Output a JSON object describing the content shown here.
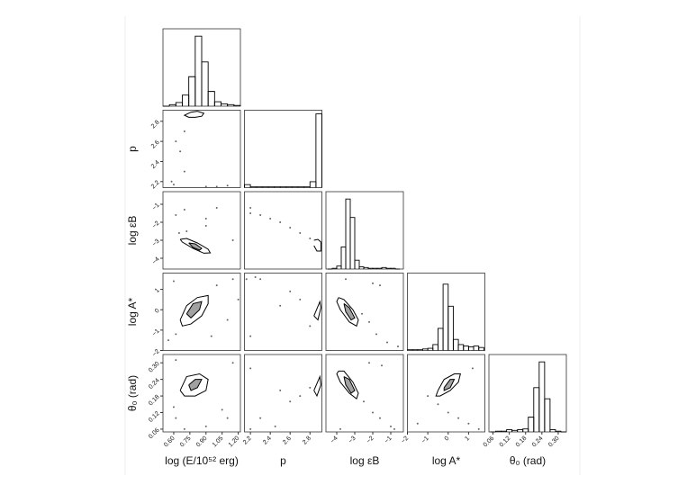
{
  "chart_data": [
    {
      "type": "histogram",
      "color": "#000000",
      "xlim": [
        0.5,
        1.22
      ],
      "ylim": [
        0,
        105
      ],
      "bins": [
        0.5,
        0.56,
        0.62,
        0.68,
        0.74,
        0.8,
        0.86,
        0.92,
        0.98,
        1.04,
        1.1,
        1.16,
        1.22
      ],
      "values": [
        0,
        2,
        5,
        15,
        40,
        95,
        60,
        20,
        6,
        3,
        2,
        1
      ]
    },
    {
      "type": "scatter",
      "color": "#666666",
      "xlim": [
        0.5,
        1.22
      ],
      "ylim": [
        2.14,
        2.91
      ],
      "yticks": [
        2.2,
        2.4,
        2.6,
        2.8
      ],
      "ylabel": "p",
      "x": [
        0.62,
        0.66,
        0.7,
        0.58,
        0.6,
        0.9,
        1.0,
        0.7,
        1.1
      ],
      "y": [
        2.6,
        2.5,
        2.3,
        2.2,
        2.17,
        2.15,
        2.15,
        2.7,
        2.16
      ],
      "contours": [
        {
          "x": [
            0.72,
            0.76,
            0.82,
            0.88,
            0.86,
            0.8,
            0.74,
            0.7,
            0.72
          ],
          "y": [
            2.87,
            2.89,
            2.9,
            2.88,
            2.85,
            2.84,
            2.84,
            2.86,
            2.87
          ]
        }
      ]
    },
    {
      "type": "histogram",
      "color": "#000000",
      "xlim": [
        2.14,
        2.92
      ],
      "ylim": [
        0,
        105
      ],
      "bins": [
        2.14,
        2.2,
        2.26,
        2.32,
        2.38,
        2.44,
        2.5,
        2.56,
        2.62,
        2.68,
        2.74,
        2.8,
        2.86,
        2.92
      ],
      "values": [
        4,
        1,
        1,
        1,
        1,
        1,
        1,
        1,
        1,
        1,
        1,
        8,
        100
      ]
    },
    {
      "type": "scatter",
      "color": "#666666",
      "xlim": [
        0.5,
        1.22
      ],
      "ylim": [
        -4.6,
        -0.3
      ],
      "yticks": [
        {
          "value": -4,
          "label": "−4"
        },
        {
          "value": -3,
          "label": "−3"
        },
        {
          "value": -2,
          "label": "−2"
        },
        {
          "value": -1,
          "label": "−1"
        }
      ],
      "ylabel": "log εB",
      "x": [
        0.62,
        0.7,
        0.9,
        1.0,
        0.65,
        0.72,
        1.15,
        0.9
      ],
      "y": [
        -1.6,
        -1.3,
        -1.8,
        -1.2,
        -2.6,
        -2.5,
        -3.0,
        -2.2
      ],
      "contours": [
        {
          "x": [
            0.66,
            0.72,
            0.82,
            0.92,
            0.94,
            0.88,
            0.78,
            0.68,
            0.66
          ],
          "y": [
            -2.95,
            -2.9,
            -3.15,
            -3.5,
            -3.7,
            -3.72,
            -3.45,
            -3.1,
            -2.95
          ]
        },
        {
          "x": [
            0.74,
            0.8,
            0.86,
            0.84,
            0.78,
            0.74
          ],
          "y": [
            -3.15,
            -3.2,
            -3.45,
            -3.55,
            -3.4,
            -3.15
          ]
        }
      ]
    },
    {
      "type": "scatter",
      "color": "#666666",
      "xlim": [
        2.14,
        2.92
      ],
      "ylim": [
        -4.6,
        -0.3
      ],
      "x": [
        2.2,
        2.3,
        2.5,
        2.6,
        2.7,
        2.8,
        2.2,
        2.4
      ],
      "y": [
        -1.5,
        -1.6,
        -2.0,
        -2.3,
        -2.6,
        -2.9,
        -1.2,
        -1.8
      ],
      "contours": [
        {
          "x": [
            2.84,
            2.88,
            2.91,
            2.91,
            2.87,
            2.84
          ],
          "y": [
            -3.0,
            -2.95,
            -3.1,
            -3.6,
            -3.6,
            -3.3
          ]
        }
      ]
    },
    {
      "type": "histogram",
      "color": "#000000",
      "xlim": [
        -4.6,
        -0.3
      ],
      "ylim": [
        0,
        105
      ],
      "bins": [
        -4.5,
        -4.25,
        -4.0,
        -3.75,
        -3.5,
        -3.25,
        -3.0,
        -2.75,
        -2.5,
        -2.25,
        -2.0,
        -1.75,
        -1.5,
        -1.25,
        -1.0,
        -0.75,
        -0.5
      ],
      "values": [
        0,
        1,
        4,
        30,
        95,
        70,
        12,
        3,
        2,
        1,
        1,
        1,
        2,
        1,
        1,
        0
      ]
    },
    {
      "type": "scatter",
      "color": "#666666",
      "xlim": [
        0.5,
        1.22
      ],
      "ylim": [
        -2,
        1.8
      ],
      "yticks": [
        {
          "value": -2,
          "label": "−2"
        },
        {
          "value": -1,
          "label": "−1"
        },
        0,
        1
      ],
      "ylabel": "log A*",
      "x": [
        0.6,
        0.62,
        1.0,
        1.1,
        1.15,
        0.55,
        0.95,
        1.2
      ],
      "y": [
        1.4,
        -1.2,
        1.2,
        -0.5,
        1.5,
        -1.5,
        -1.3,
        0.5
      ],
      "contours": [
        {
          "x": [
            0.66,
            0.72,
            0.82,
            0.92,
            0.92,
            0.86,
            0.76,
            0.68,
            0.66
          ],
          "y": [
            -0.5,
            0.2,
            0.6,
            0.7,
            0.3,
            -0.3,
            -0.7,
            -0.8,
            -0.5
          ]
        },
        {
          "x": [
            0.72,
            0.78,
            0.86,
            0.84,
            0.76,
            0.72
          ],
          "y": [
            -0.2,
            0.3,
            0.4,
            0.0,
            -0.4,
            -0.2
          ]
        }
      ]
    },
    {
      "type": "scatter",
      "color": "#666666",
      "xlim": [
        2.14,
        2.92
      ],
      "ylim": [
        -2,
        1.8
      ],
      "x": [
        2.25,
        2.3,
        2.6,
        2.2,
        2.5,
        2.7,
        2.8,
        2.16
      ],
      "y": [
        1.6,
        1.5,
        0.9,
        -1.3,
        0.2,
        0.5,
        -0.8,
        1.5
      ],
      "contours": [
        {
          "x": [
            2.84,
            2.9,
            2.91,
            2.88,
            2.84
          ],
          "y": [
            -0.3,
            0.4,
            0.1,
            -0.5,
            -0.3
          ]
        }
      ]
    },
    {
      "type": "scatter",
      "color": "#666666",
      "xlim": [
        -4.6,
        -0.3
      ],
      "ylim": [
        -2,
        1.8
      ],
      "x": [
        -2.6,
        -2.2,
        -1.8,
        -1.2,
        -2.0,
        -1.6,
        -3.5,
        -0.6
      ],
      "y": [
        -0.2,
        -0.6,
        -1.2,
        -1.6,
        1.3,
        1.2,
        1.5,
        -1.8
      ],
      "contours": [
        {
          "x": [
            -3.9,
            -3.6,
            -3.1,
            -2.8,
            -2.9,
            -3.3,
            -3.8,
            -4.0,
            -3.9
          ],
          "y": [
            0.6,
            0.5,
            0.0,
            -0.5,
            -0.8,
            -0.6,
            0.0,
            0.4,
            0.6
          ]
        },
        {
          "x": [
            -3.6,
            -3.3,
            -3.0,
            -3.2,
            -3.5,
            -3.6
          ],
          "y": [
            0.3,
            0.1,
            -0.4,
            -0.5,
            -0.1,
            0.3
          ]
        }
      ]
    },
    {
      "type": "histogram",
      "color": "#000000",
      "xlim": [
        -2,
        1.8
      ],
      "ylim": [
        0,
        105
      ],
      "bins": [
        -2,
        -1.75,
        -1.5,
        -1.25,
        -1,
        -0.75,
        -0.5,
        -0.25,
        0,
        0.25,
        0.5,
        0.75,
        1,
        1.25,
        1.5,
        1.75
      ],
      "values": [
        1,
        1,
        1,
        2,
        3,
        8,
        30,
        90,
        60,
        15,
        8,
        6,
        5,
        6,
        4
      ]
    },
    {
      "type": "scatter",
      "color": "#666666",
      "xlim": [
        0.5,
        1.22
      ],
      "ylim": [
        0.05,
        0.33
      ],
      "xticks": [
        {
          "value": 0.6,
          "label": "0.60"
        },
        0.75,
        {
          "value": 0.9,
          "label": "0.90"
        },
        1.05,
        {
          "value": 1.2,
          "label": "1.20"
        }
      ],
      "xlabel": "log (E/10⁵² erg)",
      "yticks": [
        0.06,
        0.12,
        0.18,
        0.24,
        {
          "value": 0.3,
          "label": "0.30"
        }
      ],
      "ylabel": "θ₀ (rad)",
      "x": [
        0.62,
        0.7,
        0.9,
        1.05,
        1.1,
        0.62,
        0.6,
        1.15
      ],
      "y": [
        0.31,
        0.06,
        0.07,
        0.13,
        0.1,
        0.1,
        0.14,
        0.3
      ],
      "contours": [
        {
          "x": [
            0.66,
            0.72,
            0.84,
            0.92,
            0.9,
            0.8,
            0.7,
            0.66
          ],
          "y": [
            0.2,
            0.25,
            0.26,
            0.24,
            0.2,
            0.18,
            0.18,
            0.2
          ]
        },
        {
          "x": [
            0.74,
            0.8,
            0.86,
            0.82,
            0.76,
            0.74
          ],
          "y": [
            0.22,
            0.24,
            0.24,
            0.21,
            0.2,
            0.22
          ]
        }
      ]
    },
    {
      "type": "scatter",
      "color": "#666666",
      "xlim": [
        2.14,
        2.92
      ],
      "ylim": [
        0.05,
        0.33
      ],
      "xticks": [
        2.2,
        2.4,
        2.6,
        2.8
      ],
      "xlabel": "p",
      "x": [
        2.2,
        2.3,
        2.5,
        2.6,
        2.7,
        2.8,
        2.45,
        2.2
      ],
      "y": [
        0.28,
        0.1,
        0.2,
        0.16,
        0.18,
        0.21,
        0.07,
        0.06
      ],
      "contours": [
        {
          "x": [
            2.84,
            2.9,
            2.91,
            2.87,
            2.84
          ],
          "y": [
            0.2,
            0.25,
            0.22,
            0.18,
            0.2
          ]
        }
      ]
    },
    {
      "type": "scatter",
      "color": "#666666",
      "xlim": [
        -4.6,
        -0.3
      ],
      "ylim": [
        0.05,
        0.33
      ],
      "xticks": [
        {
          "value": -4,
          "label": "−4"
        },
        {
          "value": -3,
          "label": "−3"
        },
        {
          "value": -2,
          "label": "−2"
        },
        {
          "value": -1,
          "label": "−1"
        }
      ],
      "xlabel": "log εB",
      "x": [
        -2.5,
        -2.0,
        -1.6,
        -1.0,
        -2.2,
        -1.5,
        -3.8,
        -0.8
      ],
      "y": [
        0.16,
        0.12,
        0.1,
        0.07,
        0.3,
        0.29,
        0.06,
        0.06
      ],
      "contours": [
        {
          "x": [
            -3.9,
            -3.6,
            -3.1,
            -2.8,
            -2.9,
            -3.3,
            -3.8,
            -4.0,
            -3.9
          ],
          "y": [
            0.27,
            0.27,
            0.23,
            0.19,
            0.17,
            0.19,
            0.23,
            0.26,
            0.27
          ]
        },
        {
          "x": [
            -3.6,
            -3.3,
            -3.0,
            -3.2,
            -3.5,
            -3.6
          ],
          "y": [
            0.25,
            0.24,
            0.2,
            0.19,
            0.22,
            0.25
          ]
        }
      ]
    },
    {
      "type": "scatter",
      "color": "#666666",
      "xlim": [
        -2,
        1.8
      ],
      "ylim": [
        0.05,
        0.33
      ],
      "xticks": [
        {
          "value": -2,
          "label": "−2"
        },
        {
          "value": -1,
          "label": "−1"
        },
        0,
        1
      ],
      "xlabel": "log A*",
      "x": [
        -1.0,
        -0.5,
        0.0,
        0.5,
        1.0,
        1.5,
        -1.5,
        1.2
      ],
      "y": [
        0.18,
        0.15,
        0.12,
        0.1,
        0.08,
        0.06,
        0.08,
        0.28
      ],
      "contours": [
        {
          "x": [
            -0.5,
            -0.2,
            0.3,
            0.6,
            0.5,
            0.1,
            -0.4,
            -0.6,
            -0.5
          ],
          "y": [
            0.2,
            0.24,
            0.26,
            0.26,
            0.23,
            0.2,
            0.18,
            0.18,
            0.2
          ]
        },
        {
          "x": [
            -0.2,
            0.1,
            0.3,
            0.1,
            -0.2,
            -0.2
          ],
          "y": [
            0.21,
            0.24,
            0.24,
            0.21,
            0.2,
            0.21
          ]
        }
      ]
    },
    {
      "type": "histogram",
      "color": "#000000",
      "xlim": [
        0.045,
        0.33
      ],
      "ylim": [
        0,
        105
      ],
      "xticks": [
        0.06,
        0.12,
        0.18,
        0.24,
        {
          "value": 0.3,
          "label": "0.30"
        }
      ],
      "xlabel": "θ₀ (rad)",
      "bins": [
        0.05,
        0.07,
        0.09,
        0.11,
        0.13,
        0.15,
        0.17,
        0.19,
        0.21,
        0.23,
        0.25,
        0.27,
        0.29,
        0.31,
        0.33
      ],
      "values": [
        0,
        1,
        1,
        3,
        2,
        3,
        4,
        20,
        60,
        95,
        45,
        3,
        1,
        0
      ]
    }
  ]
}
